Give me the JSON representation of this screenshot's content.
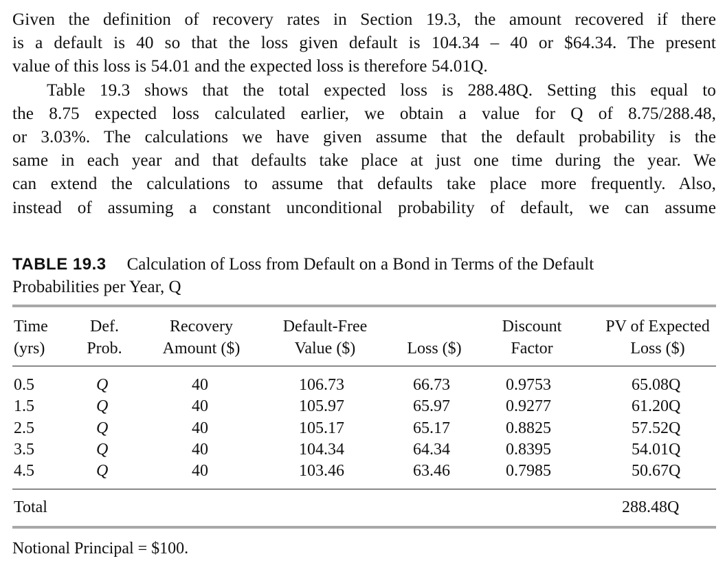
{
  "paragraph1": {
    "line1": "Given the definition of recovery rates in Section 19.3, the amount recovered if there",
    "line2": "is a default is 40 so that the loss given default is 104.34 – 40 or $64.34. The present",
    "line3": "value of this loss is 54.01 and the expected loss is therefore 54.01Q."
  },
  "paragraph2": {
    "line1": "Table 19.3 shows that the total expected loss is 288.48Q. Setting this equal to",
    "line2": "the 8.75 expected loss calculated earlier, we obtain a value for Q of 8.75/288.48,",
    "line3": "or 3.03%. The calculations we have given assume that the default probability is the",
    "line4": "same in each year and that defaults take place at just one time during the year. We",
    "line5": "can extend the calculations to assume that defaults take place more frequently. Also,",
    "line6": "instead of assuming a constant unconditional probability of default, we can assume"
  },
  "table": {
    "label": "TABLE 19.3",
    "caption_line1": "Calculation of Loss from Default on a Bond in Terms of the Default",
    "caption_line2": "Probabilities per Year, Q",
    "headers": {
      "time": [
        "Time",
        "(yrs)"
      ],
      "def_prob": [
        "Def.",
        "Prob."
      ],
      "recovery": [
        "Recovery",
        "Amount ($)"
      ],
      "default_free": [
        "Default-Free",
        "Value ($)"
      ],
      "loss": [
        "",
        "Loss ($)"
      ],
      "discount": [
        "Discount",
        "Factor"
      ],
      "pv": [
        "PV of Expected",
        "Loss ($)"
      ]
    },
    "rows": [
      {
        "time": "0.5",
        "def_prob": "Q",
        "recovery": "40",
        "default_free": "106.73",
        "loss": "66.73",
        "discount": "0.9753",
        "pv": "65.08Q"
      },
      {
        "time": "1.5",
        "def_prob": "Q",
        "recovery": "40",
        "default_free": "105.97",
        "loss": "65.97",
        "discount": "0.9277",
        "pv": "61.20Q"
      },
      {
        "time": "2.5",
        "def_prob": "Q",
        "recovery": "40",
        "default_free": "105.17",
        "loss": "65.17",
        "discount": "0.8825",
        "pv": "57.52Q"
      },
      {
        "time": "3.5",
        "def_prob": "Q",
        "recovery": "40",
        "default_free": "104.34",
        "loss": "64.34",
        "discount": "0.8395",
        "pv": "54.01Q"
      },
      {
        "time": "4.5",
        "def_prob": "Q",
        "recovery": "40",
        "default_free": "103.46",
        "loss": "63.46",
        "discount": "0.7985",
        "pv": "50.67Q"
      }
    ],
    "total_label": "Total",
    "total_value": "288.48Q",
    "footnote": "Notional Principal = $100."
  }
}
